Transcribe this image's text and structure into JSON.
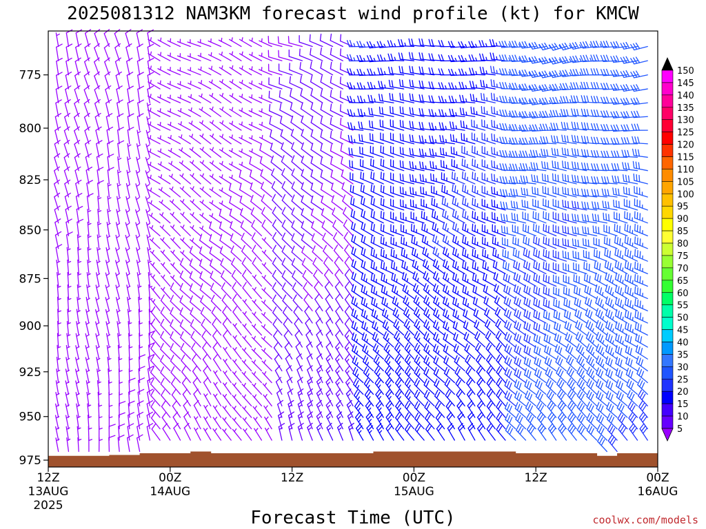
{
  "chart_data": {
    "type": "wind-barb time-height",
    "title": "2025081312 NAM3KM forecast wind profile (kt) for KMCW",
    "xlabel": "Forecast Time (UTC)",
    "ylabel": "",
    "units": "kt",
    "x_ticks": [
      {
        "hours": 0,
        "label": "12Z",
        "sub1": "13AUG",
        "sub2": "2025"
      },
      {
        "hours": 12,
        "label": "00Z",
        "sub1": "14AUG",
        "sub2": ""
      },
      {
        "hours": 24,
        "label": "12Z",
        "sub1": "",
        "sub2": ""
      },
      {
        "hours": 36,
        "label": "00Z",
        "sub1": "15AUG",
        "sub2": ""
      },
      {
        "hours": 48,
        "label": "12Z",
        "sub1": "",
        "sub2": ""
      },
      {
        "hours": 60,
        "label": "00Z",
        "sub1": "16AUG",
        "sub2": ""
      }
    ],
    "xlim_hours": [
      0,
      60
    ],
    "y_ticks": [
      {
        "p": 775,
        "label": "775"
      },
      {
        "p": 800,
        "label": "800"
      },
      {
        "p": 825,
        "label": "825"
      },
      {
        "p": 850,
        "label": "850"
      },
      {
        "p": 875,
        "label": "875"
      },
      {
        "p": 900,
        "label": "900"
      },
      {
        "p": 925,
        "label": "925"
      },
      {
        "p": 950,
        "label": "950"
      },
      {
        "p": 975,
        "label": "975"
      }
    ],
    "ylim_hPa": [
      755,
      979
    ],
    "y_scale": "log (pressure)",
    "time_step_hours": 1,
    "level_step_hPa": 6.5,
    "ground_pressure_hPa": [
      {
        "t0": 0,
        "t1": 6,
        "p": 972.5
      },
      {
        "t0": 6,
        "t1": 9,
        "p": 972.0
      },
      {
        "t0": 9,
        "t1": 12,
        "p": 971.0
      },
      {
        "t0": 12,
        "t1": 14,
        "p": 971.0
      },
      {
        "t0": 14,
        "t1": 16,
        "p": 970.0
      },
      {
        "t0": 16,
        "t1": 32,
        "p": 971.0
      },
      {
        "t0": 32,
        "t1": 46,
        "p": 970.0
      },
      {
        "t0": 46,
        "t1": 54,
        "p": 971.0
      },
      {
        "t0": 54,
        "t1": 56,
        "p": 972.5
      },
      {
        "t0": 56,
        "t1": 60,
        "p": 971.0
      }
    ],
    "wind_regimes": [
      {
        "t0": 0,
        "t1": 10,
        "dir_low": 355,
        "dir_high": 345,
        "spd_low": 6,
        "spd_high": 8
      },
      {
        "t0": 10,
        "t1": 22,
        "dir_low": 330,
        "dir_high": 295,
        "spd_low": 8,
        "spd_high": 5
      },
      {
        "t0": 22,
        "t1": 30,
        "dir_low": 345,
        "dir_high": 290,
        "spd_low": 14,
        "spd_high": 9
      },
      {
        "t0": 30,
        "t1": 45,
        "dir_low": 330,
        "dir_high": 270,
        "spd_low": 22,
        "spd_high": 24
      },
      {
        "t0": 45,
        "t1": 60,
        "dir_low": 325,
        "dir_high": 260,
        "spd_low": 30,
        "spd_high": 33
      }
    ],
    "colorbar": {
      "labels": [
        "150",
        "145",
        "140",
        "135",
        "130",
        "125",
        "120",
        "115",
        "110",
        "105",
        "100",
        "95",
        "90",
        "85",
        "80",
        "75",
        "70",
        "65",
        "60",
        "55",
        "50",
        "45",
        "40",
        "35",
        "30",
        "25",
        "20",
        "15",
        "10",
        "5"
      ],
      "colors": [
        "#000000",
        "#ff00ff",
        "#ff00cc",
        "#ff0099",
        "#ff0066",
        "#ff0033",
        "#ff0000",
        "#ff3300",
        "#ff6600",
        "#ff8c00",
        "#ffa500",
        "#ffc000",
        "#ffd700",
        "#ffff00",
        "#ffff33",
        "#ccff33",
        "#99ff33",
        "#66ff33",
        "#33ff33",
        "#00ff66",
        "#00ffaa",
        "#00ffcc",
        "#00ccff",
        "#0099ff",
        "#3377ff",
        "#1f55ff",
        "#1f33ff",
        "#0000ff",
        "#4400ff",
        "#6600ff",
        "#9900ff"
      ]
    }
  },
  "credit": "coolwx.com/models"
}
